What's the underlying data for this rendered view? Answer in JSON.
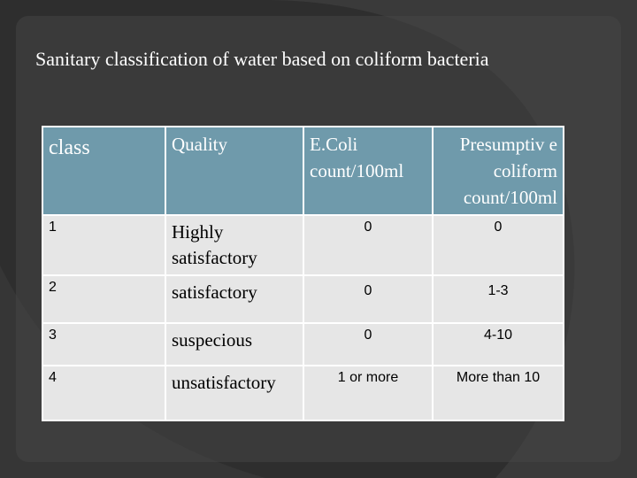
{
  "title": "Sanitary classification of water based on coliform bacteria",
  "table": {
    "header": [
      "class",
      "Quality",
      "E.Coli count/100ml",
      "Presumptiv e coliform count/100ml"
    ],
    "rows": [
      [
        "1",
        "Highly satisfactory",
        "0",
        "0"
      ],
      [
        "2",
        "satisfactory",
        "0",
        "1-3"
      ],
      [
        "3",
        "suspecious",
        "0",
        "4-10"
      ],
      [
        "4",
        "unsatisfactory",
        "1 or more",
        "More than 10"
      ]
    ]
  }
}
